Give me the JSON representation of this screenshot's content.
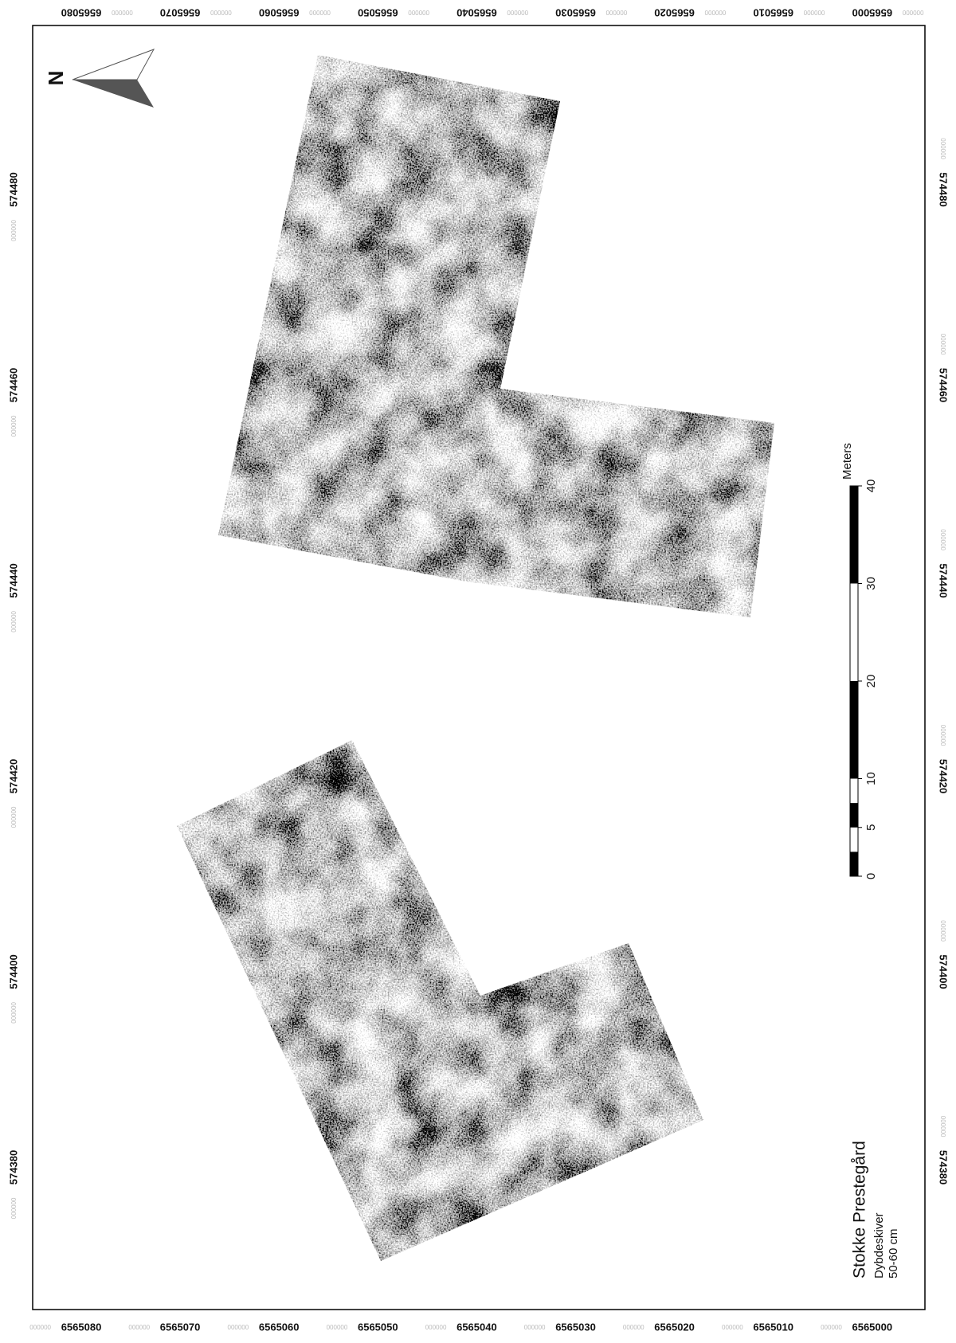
{
  "map": {
    "title": "Stokke Prestegård",
    "subtitle": "Dybdeskiver",
    "depth": "50-60 cm",
    "north_label": "N",
    "northing_labels": [
      "6565080",
      "6565070",
      "6565060",
      "6565050",
      "6565040",
      "6565030",
      "6565020",
      "6565010",
      "6565000"
    ],
    "easting_labels": [
      "574480",
      "574460",
      "574440",
      "574420",
      "574400",
      "574380"
    ],
    "coordinate_suffix": "000000",
    "scale_bar": {
      "unit": "Meters",
      "ticks": [
        0,
        5,
        10,
        20,
        30,
        40
      ]
    }
  }
}
